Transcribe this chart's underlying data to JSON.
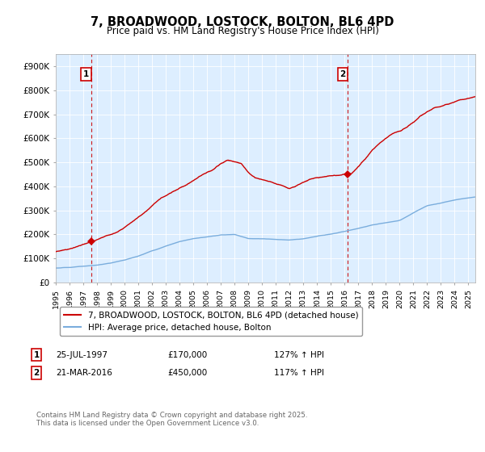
{
  "title": "7, BROADWOOD, LOSTOCK, BOLTON, BL6 4PD",
  "subtitle": "Price paid vs. HM Land Registry's House Price Index (HPI)",
  "hpi_color": "#7aaddd",
  "price_color": "#cc0000",
  "vline_color": "#cc0000",
  "bg_color": "#ddeeff",
  "ylim": [
    0,
    950000
  ],
  "yticks": [
    0,
    100000,
    200000,
    300000,
    400000,
    500000,
    600000,
    700000,
    800000,
    900000
  ],
  "ytick_labels": [
    "£0",
    "£100K",
    "£200K",
    "£300K",
    "£400K",
    "£500K",
    "£600K",
    "£700K",
    "£800K",
    "£900K"
  ],
  "sale1_date": 1997.57,
  "sale1_price": 170000,
  "sale2_date": 2016.22,
  "sale2_price": 450000,
  "legend_line1": "7, BROADWOOD, LOSTOCK, BOLTON, BL6 4PD (detached house)",
  "legend_line2": "HPI: Average price, detached house, Bolton",
  "footnote": "Contains HM Land Registry data © Crown copyright and database right 2025.\nThis data is licensed under the Open Government Licence v3.0.",
  "xmin": 1995,
  "xmax": 2025.5
}
